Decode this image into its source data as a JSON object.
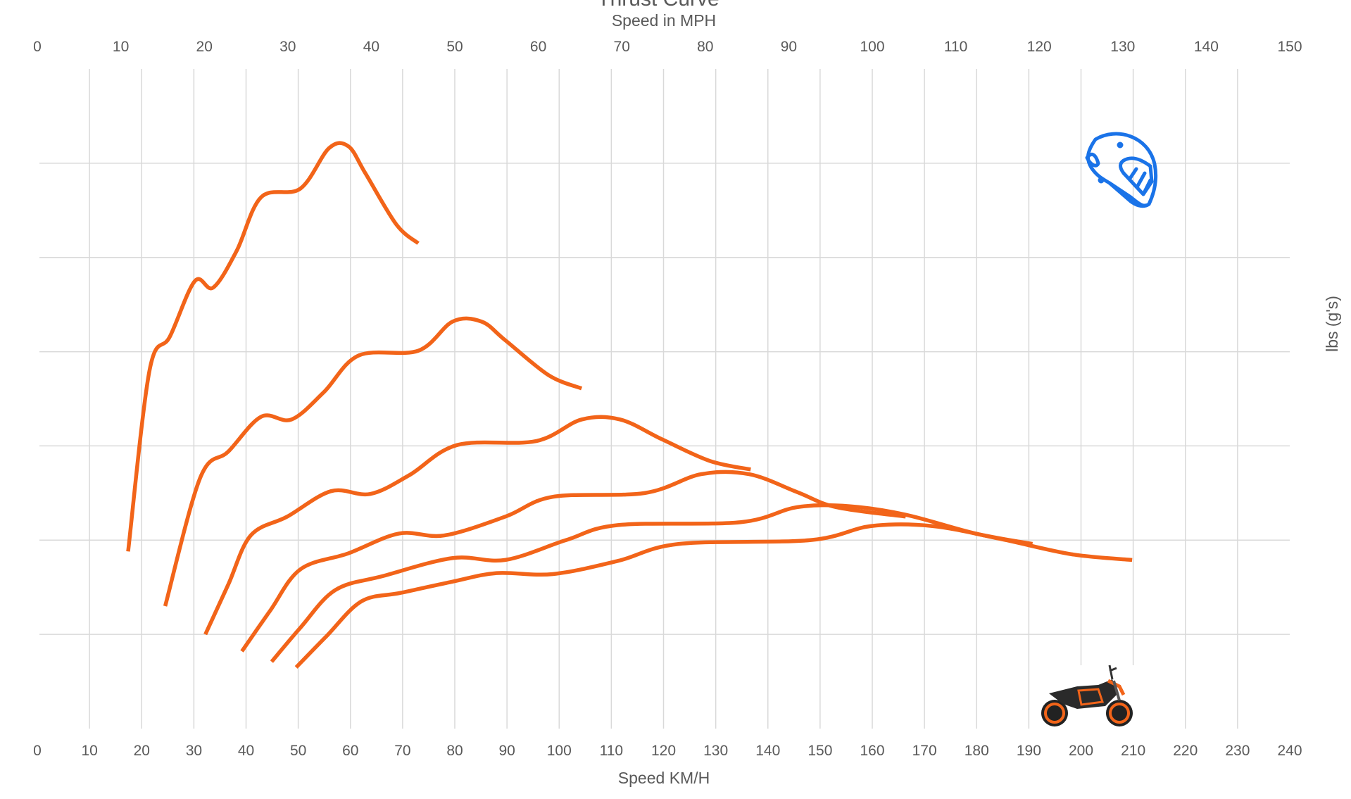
{
  "chart_data": {
    "type": "line",
    "title": "Thrust Curve",
    "x_secondary_label": "Speed in MPH",
    "xlabel": "Speed KM/H",
    "ylabel": "lbs (g's)",
    "xlim": [
      0,
      240
    ],
    "x_ticks": [
      0,
      10,
      20,
      30,
      40,
      50,
      60,
      70,
      80,
      90,
      100,
      110,
      120,
      130,
      140,
      150,
      160,
      170,
      180,
      190,
      200,
      210,
      220,
      230,
      240
    ],
    "x_secondary_lim": [
      0,
      150
    ],
    "x_secondary_ticks": [
      0,
      10,
      20,
      30,
      40,
      50,
      60,
      70,
      80,
      90,
      100,
      110,
      120,
      130,
      140,
      150
    ],
    "ylim": [
      0,
      7
    ],
    "y_gridlines": [
      1,
      2,
      3,
      4,
      5,
      6
    ],
    "y_tick_labels_shown": false,
    "grid": true,
    "line_color": "#F26419",
    "icon_color": "#1A73E8",
    "icons": [
      "helmet-icon",
      "motorcycle-image"
    ],
    "series": [
      {
        "x": [
          17.4,
          21.5,
          25.4,
          30.2,
          33.7,
          38.2,
          42.9,
          50.4,
          55.9,
          59.6,
          62.9,
          68.8,
          73.0
        ],
        "y": [
          1.88,
          3.8,
          4.16,
          4.75,
          4.68,
          5.07,
          5.64,
          5.73,
          6.16,
          6.18,
          5.89,
          5.35,
          5.15
        ]
      },
      {
        "x": [
          24.5,
          31.2,
          36.6,
          42.9,
          48.7,
          54.9,
          61.6,
          73.0,
          79.6,
          85.1,
          89.7,
          98.0,
          104.3
        ],
        "y": [
          1.3,
          2.66,
          2.94,
          3.31,
          3.28,
          3.57,
          3.96,
          4.01,
          4.32,
          4.32,
          4.12,
          3.75,
          3.61
        ]
      },
      {
        "x": [
          32.2,
          36.6,
          40.9,
          47.9,
          56.3,
          63.8,
          71.3,
          80.5,
          95.5,
          104.3,
          111.7,
          119.7,
          128.9,
          136.7
        ],
        "y": [
          1.0,
          1.53,
          2.05,
          2.25,
          2.52,
          2.49,
          2.69,
          3.01,
          3.05,
          3.28,
          3.28,
          3.07,
          2.84,
          2.75
        ]
      },
      {
        "x": [
          39.2,
          44.6,
          50.4,
          59.6,
          69.3,
          78.0,
          89.7,
          98.8,
          116.4,
          127.2,
          136.4,
          145.6,
          153.1,
          166.4
        ],
        "y": [
          0.82,
          1.25,
          1.69,
          1.86,
          2.07,
          2.05,
          2.25,
          2.46,
          2.5,
          2.7,
          2.7,
          2.51,
          2.35,
          2.25
        ]
      },
      {
        "x": [
          44.9,
          50.4,
          57.1,
          66.3,
          79.6,
          89.7,
          101.3,
          111.3,
          134.7,
          145.6,
          155.6,
          166.4,
          179.8,
          190.7
        ],
        "y": [
          0.71,
          1.07,
          1.47,
          1.62,
          1.81,
          1.79,
          2.0,
          2.16,
          2.19,
          2.35,
          2.36,
          2.27,
          2.07,
          1.96
        ]
      },
      {
        "x": [
          49.6,
          55.4,
          62.1,
          69.6,
          79.6,
          88.0,
          98.8,
          111.3,
          123.0,
          148.1,
          159.8,
          171.5,
          184.8,
          198.2,
          209.8
        ],
        "y": [
          0.65,
          0.98,
          1.35,
          1.44,
          1.56,
          1.65,
          1.64,
          1.78,
          1.96,
          2.0,
          2.15,
          2.15,
          2.01,
          1.85,
          1.79
        ]
      }
    ]
  }
}
